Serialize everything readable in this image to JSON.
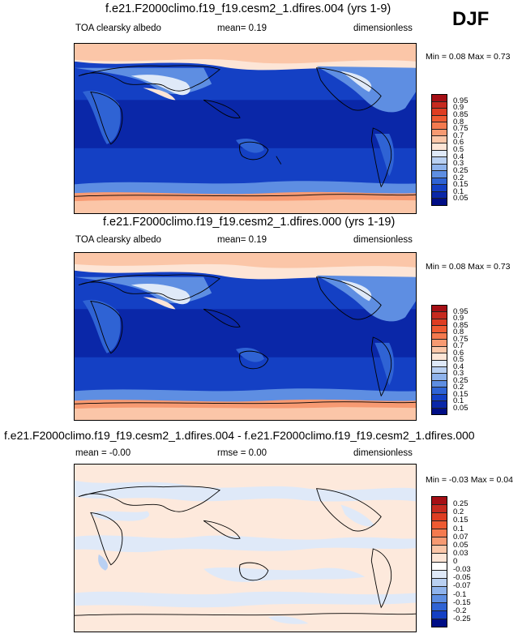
{
  "season": "DJF",
  "panels": [
    {
      "title": "f.e21.F2000climo.f19_f19.cesm2_1.dfires.004 (yrs 1-9)",
      "left_label": "TOA clearsky albedo",
      "mid_label": "mean=  0.19",
      "units": "dimensionless",
      "minmax": "Min =   0.08 Max =   0.73",
      "levels": [
        "0.95",
        "0.9",
        "0.85",
        "0.8",
        "0.75",
        "0.7",
        "0.6",
        "0.5",
        "0.4",
        "0.3",
        "0.25",
        "0.2",
        "0.15",
        "0.1",
        "0.05"
      ],
      "colors": [
        "#a50f15",
        "#c62a1f",
        "#de3d22",
        "#ee5a32",
        "#f47a4f",
        "#f79a72",
        "#fbc6a8",
        "#fde5d6",
        "#dfe9f8",
        "#b9d0f2",
        "#8fb3ec",
        "#5e8ee2",
        "#2f63d4",
        "#1440c4",
        "#0a27a8",
        "#000e86"
      ]
    },
    {
      "title": "f.e21.F2000climo.f19_f19.cesm2_1.dfires.000 (yrs 1-19)",
      "left_label": "TOA clearsky albedo",
      "mid_label": "mean=  0.19",
      "units": "dimensionless",
      "minmax": "Min =   0.08 Max =   0.73",
      "levels": [
        "0.95",
        "0.9",
        "0.85",
        "0.8",
        "0.75",
        "0.7",
        "0.6",
        "0.5",
        "0.4",
        "0.3",
        "0.25",
        "0.2",
        "0.15",
        "0.1",
        "0.05"
      ],
      "colors": [
        "#a50f15",
        "#c62a1f",
        "#de3d22",
        "#ee5a32",
        "#f47a4f",
        "#f79a72",
        "#fbc6a8",
        "#fde5d6",
        "#dfe9f8",
        "#b9d0f2",
        "#8fb3ec",
        "#5e8ee2",
        "#2f63d4",
        "#1440c4",
        "#0a27a8",
        "#000e86"
      ]
    },
    {
      "title": "f.e21.F2000climo.f19_f19.cesm2_1.dfires.004 - f.e21.F2000climo.f19_f19.cesm2_1.dfires.000",
      "left_label": "mean =  -0.00",
      "mid_label": "rmse =   0.00",
      "units": "dimensionless",
      "minmax": "Min =  -0.03 Max =   0.04",
      "levels": [
        "0.25",
        "0.2",
        "0.15",
        "0.1",
        "0.07",
        "0.05",
        "0.03",
        "0",
        "-0.03",
        "-0.05",
        "-0.07",
        "-0.1",
        "-0.15",
        "-0.2",
        "-0.25"
      ],
      "colors": [
        "#a50f15",
        "#c62a1f",
        "#de3d22",
        "#ee5a32",
        "#f47a4f",
        "#f79a72",
        "#fbc6a8",
        "#fde5d6",
        "#ffffff",
        "#dfe9f8",
        "#b9d0f2",
        "#8fb3ec",
        "#5e8ee2",
        "#2f63d4",
        "#1440c4",
        "#000e86"
      ]
    }
  ]
}
